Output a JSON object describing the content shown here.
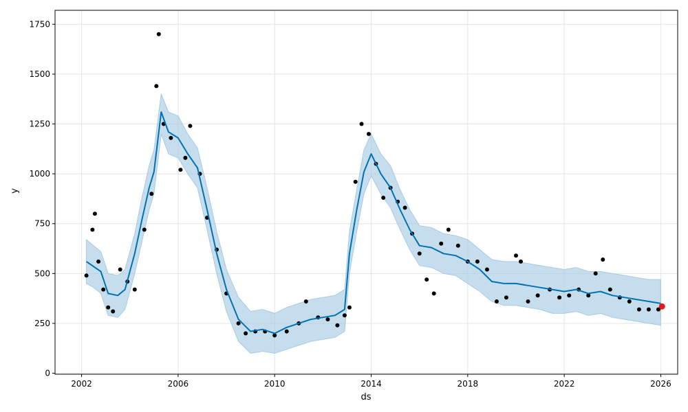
{
  "chart_data": {
    "type": "line",
    "title": "",
    "xlabel": "ds",
    "ylabel": "y",
    "xlim": [
      2000.9,
      2026.7
    ],
    "ylim": [
      -5,
      1820
    ],
    "x_ticks": [
      2002,
      2006,
      2010,
      2014,
      2018,
      2022,
      2026
    ],
    "y_ticks": [
      0,
      250,
      500,
      750,
      1000,
      1250,
      1500,
      1750
    ],
    "grid": true,
    "legend": "none",
    "colors": {
      "observed": "#000000",
      "forecast": "#0072b2",
      "interval": "#a6cbe3",
      "latest_point": "#e41a1c"
    },
    "series": [
      {
        "role": "forecast",
        "x": [
          2002.2,
          2002.5,
          2002.8,
          2003.1,
          2003.5,
          2003.8,
          2004.2,
          2004.5,
          2004.8,
          2005.0,
          2005.3,
          2005.6,
          2006.0,
          2006.4,
          2006.8,
          2007.2,
          2007.6,
          2008.0,
          2008.5,
          2009.0,
          2009.5,
          2010.0,
          2010.5,
          2011.0,
          2011.5,
          2012.0,
          2012.5,
          2012.9,
          2013.1,
          2013.4,
          2013.7,
          2014.0,
          2014.4,
          2014.8,
          2015.2,
          2015.6,
          2016.0,
          2016.5,
          2017.0,
          2017.5,
          2018.0,
          2018.5,
          2019.0,
          2019.5,
          2020.0,
          2020.5,
          2021.0,
          2021.5,
          2022.0,
          2022.5,
          2023.0,
          2023.5,
          2024.0,
          2024.5,
          2025.0,
          2025.5,
          2026.0
        ],
        "y": [
          560,
          535,
          510,
          400,
          390,
          420,
          600,
          770,
          930,
          1010,
          1310,
          1210,
          1180,
          1100,
          1030,
          820,
          600,
          420,
          270,
          210,
          220,
          200,
          230,
          250,
          270,
          280,
          290,
          320,
          600,
          820,
          1010,
          1100,
          1000,
          930,
          820,
          720,
          640,
          630,
          600,
          590,
          560,
          520,
          460,
          450,
          450,
          440,
          430,
          420,
          410,
          420,
          400,
          410,
          390,
          380,
          370,
          360,
          350
        ]
      },
      {
        "role": "interval-upper",
        "x": [
          2002.2,
          2002.5,
          2002.8,
          2003.1,
          2003.5,
          2003.8,
          2004.2,
          2004.5,
          2004.8,
          2005.0,
          2005.3,
          2005.6,
          2006.0,
          2006.4,
          2006.8,
          2007.2,
          2007.6,
          2008.0,
          2008.5,
          2009.0,
          2009.5,
          2010.0,
          2010.5,
          2011.0,
          2011.5,
          2012.0,
          2012.5,
          2012.9,
          2013.1,
          2013.4,
          2013.7,
          2014.0,
          2014.4,
          2014.8,
          2015.2,
          2015.6,
          2016.0,
          2016.5,
          2017.0,
          2017.5,
          2018.0,
          2018.5,
          2019.0,
          2019.5,
          2020.0,
          2020.5,
          2021.0,
          2021.5,
          2022.0,
          2022.5,
          2023.0,
          2023.5,
          2024.0,
          2024.5,
          2025.0,
          2025.5,
          2026.0
        ],
        "y": [
          670,
          640,
          610,
          500,
          490,
          520,
          700,
          880,
          1040,
          1120,
          1400,
          1310,
          1290,
          1200,
          1130,
          930,
          710,
          520,
          380,
          310,
          320,
          300,
          330,
          350,
          370,
          380,
          390,
          420,
          710,
          920,
          1120,
          1200,
          1100,
          1040,
          920,
          820,
          740,
          730,
          700,
          690,
          670,
          620,
          570,
          560,
          560,
          550,
          540,
          530,
          520,
          530,
          510,
          510,
          500,
          490,
          480,
          470,
          470
        ]
      },
      {
        "role": "interval-lower",
        "x": [
          2002.2,
          2002.5,
          2002.8,
          2003.1,
          2003.5,
          2003.8,
          2004.2,
          2004.5,
          2004.8,
          2005.0,
          2005.3,
          2005.6,
          2006.0,
          2006.4,
          2006.8,
          2007.2,
          2007.6,
          2008.0,
          2008.5,
          2009.0,
          2009.5,
          2010.0,
          2010.5,
          2011.0,
          2011.5,
          2012.0,
          2012.5,
          2012.9,
          2013.1,
          2013.4,
          2013.7,
          2014.0,
          2014.4,
          2014.8,
          2015.2,
          2015.6,
          2016.0,
          2016.5,
          2017.0,
          2017.5,
          2018.0,
          2018.5,
          2019.0,
          2019.5,
          2020.0,
          2020.5,
          2021.0,
          2021.5,
          2022.0,
          2022.5,
          2023.0,
          2023.5,
          2024.0,
          2024.5,
          2025.0,
          2025.5,
          2026.0
        ],
        "y": [
          450,
          430,
          400,
          290,
          280,
          320,
          500,
          660,
          820,
          900,
          1200,
          1100,
          1080,
          1000,
          930,
          720,
          500,
          310,
          160,
          100,
          110,
          100,
          120,
          140,
          160,
          170,
          180,
          210,
          500,
          710,
          900,
          990,
          900,
          830,
          720,
          620,
          540,
          530,
          500,
          490,
          450,
          410,
          360,
          340,
          340,
          330,
          320,
          300,
          300,
          310,
          290,
          300,
          280,
          270,
          260,
          250,
          240
        ]
      },
      {
        "role": "observed",
        "x": [
          2002.2,
          2002.45,
          2002.55,
          2002.7,
          2002.9,
          2003.1,
          2003.3,
          2003.6,
          2003.9,
          2004.2,
          2004.6,
          2004.9,
          2005.1,
          2005.2,
          2005.4,
          2005.7,
          2006.1,
          2006.3,
          2006.5,
          2006.9,
          2007.2,
          2007.6,
          2008.0,
          2008.5,
          2008.8,
          2009.2,
          2009.6,
          2010.0,
          2010.5,
          2011.0,
          2011.3,
          2011.8,
          2012.2,
          2012.6,
          2012.9,
          2013.1,
          2013.35,
          2013.6,
          2013.9,
          2014.2,
          2014.5,
          2014.8,
          2015.1,
          2015.4,
          2015.7,
          2016.0,
          2016.3,
          2016.6,
          2016.9,
          2017.2,
          2017.6,
          2018.0,
          2018.4,
          2018.8,
          2019.2,
          2019.6,
          2020.0,
          2020.2,
          2020.5,
          2020.9,
          2021.4,
          2021.8,
          2022.2,
          2022.6,
          2023.0,
          2023.3,
          2023.6,
          2023.9,
          2024.3,
          2024.7,
          2025.1,
          2025.5,
          2025.9
        ],
        "y": [
          490,
          720,
          800,
          560,
          420,
          330,
          310,
          520,
          460,
          420,
          720,
          900,
          1440,
          1700,
          1250,
          1180,
          1020,
          1080,
          1240,
          1000,
          780,
          620,
          400,
          250,
          200,
          210,
          210,
          190,
          210,
          250,
          360,
          280,
          270,
          240,
          290,
          330,
          960,
          1250,
          1200,
          1050,
          880,
          930,
          860,
          830,
          700,
          600,
          470,
          400,
          650,
          720,
          640,
          560,
          560,
          520,
          360,
          380,
          590,
          560,
          360,
          390,
          420,
          380,
          390,
          420,
          390,
          500,
          570,
          420,
          380,
          360,
          320,
          320,
          320
        ]
      },
      {
        "role": "latest",
        "x": [
          2026.05
        ],
        "y": [
          335
        ]
      }
    ]
  }
}
